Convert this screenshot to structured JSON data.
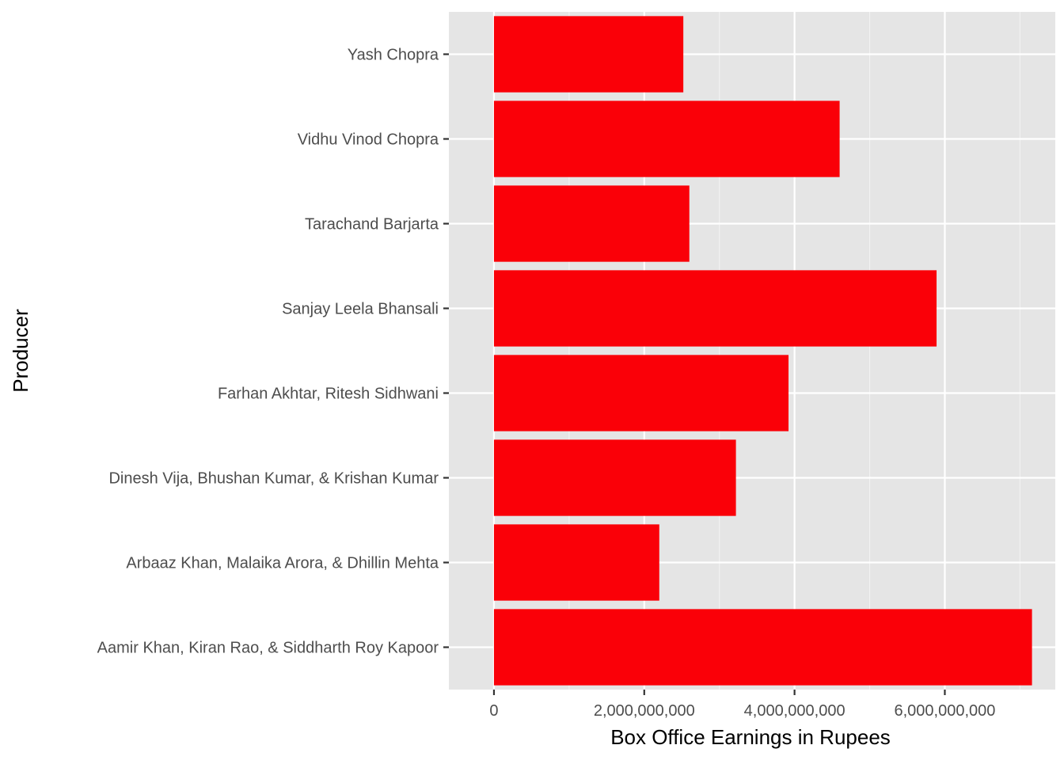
{
  "chart_data": {
    "type": "bar",
    "orientation": "horizontal",
    "title": "",
    "xlabel": "Box Office Earnings in Rupees",
    "ylabel": "Producer",
    "xlim": [
      -600000000,
      7470000000
    ],
    "x_ticks": [
      0,
      2000000000,
      4000000000,
      6000000000
    ],
    "x_tick_labels": [
      "0",
      "2,000,000,000",
      "4,000,000,000",
      "6,000,000,000"
    ],
    "grid": true,
    "legend": "none",
    "categories": [
      "Aamir Khan, Kiran Rao, & Siddharth Roy Kapoor",
      "Arbaaz Khan, Malaika Arora, & Dhillin Mehta",
      "Dinesh Vija, Bhushan Kumar, & Krishan Kumar",
      "Farhan Akhtar, Ritesh Sidhwani",
      "Sanjay Leela Bhansali",
      "Tarachand Barjarta",
      "Vidhu Vinod Chopra",
      "Yash Chopra"
    ],
    "values": [
      7160000000,
      2200000000,
      3220000000,
      3920000000,
      5890000000,
      2600000000,
      4600000000,
      2520000000
    ],
    "colors": {
      "bar": "#fa0008",
      "panel": "#e5e5e5",
      "grid_major": "#ffffff",
      "grid_minor": "#f2f2f2",
      "tick_text": "#4d4d4d",
      "axis_text": "#000000"
    }
  }
}
